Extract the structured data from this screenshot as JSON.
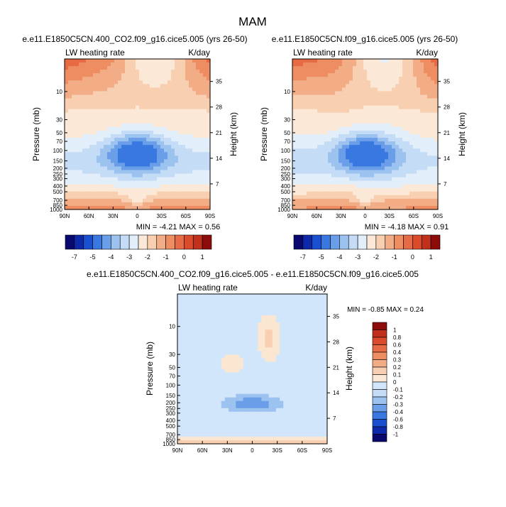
{
  "page_title": "MAM",
  "chart_data": [
    {
      "type": "heatmap",
      "title": "e.e11.E1850C5CN.400_CO2.f09_g16.cice5.005 (yrs 26-50)",
      "left_label": "LW heating rate",
      "right_label": "K/day",
      "ylabel": "Pressure (mb)",
      "ylabel_right": "Height (km)",
      "x_ticks": [
        "90N",
        "60N",
        "30N",
        "0",
        "30S",
        "60S",
        "90S"
      ],
      "pressure_ticks": [
        "10",
        "30",
        "50",
        "70",
        "100",
        "150",
        "200",
        "250",
        "300",
        "400",
        "500",
        "700",
        "850",
        "1000"
      ],
      "height_ticks": [
        "35",
        "28",
        "21",
        "14",
        "7"
      ],
      "stats": "MIN = -4.21   MAX =  0.56",
      "min": -4.21,
      "max": 0.56,
      "colorbar_labels": [
        "-7",
        "-5",
        "-4",
        "-3",
        "-2",
        "-1",
        "0",
        "1"
      ],
      "levels": [
        -8,
        -7,
        -6,
        -5,
        -4,
        -3.5,
        -3,
        -2.5,
        -2,
        -1.5,
        -1,
        -0.5,
        0,
        0.5,
        1,
        2
      ]
    },
    {
      "type": "heatmap",
      "title": "e.e11.E1850C5CN.f09_g16.cice5.005 (yrs 26-50)",
      "left_label": "LW heating rate",
      "right_label": "K/day",
      "ylabel": "Pressure (mb)",
      "ylabel_right": "Height (km)",
      "x_ticks": [
        "90N",
        "60N",
        "30N",
        "0",
        "30S",
        "60S",
        "90S"
      ],
      "pressure_ticks": [
        "10",
        "30",
        "50",
        "70",
        "100",
        "150",
        "200",
        "250",
        "300",
        "400",
        "500",
        "700",
        "850",
        "1000"
      ],
      "height_ticks": [
        "35",
        "28",
        "21",
        "14",
        "7"
      ],
      "stats": "MIN = -4.18   MAX =  0.91",
      "min": -4.18,
      "max": 0.91,
      "colorbar_labels": [
        "-7",
        "-5",
        "-4",
        "-3",
        "-2",
        "-1",
        "0",
        "1"
      ],
      "levels": [
        -8,
        -7,
        -6,
        -5,
        -4,
        -3.5,
        -3,
        -2.5,
        -2,
        -1.5,
        -1,
        -0.5,
        0,
        0.5,
        1,
        2
      ]
    },
    {
      "type": "heatmap",
      "title": "e.e11.E1850C5CN.400_CO2.f09_g16.cice5.005 - e.e11.E1850C5CN.f09_g16.cice5.005",
      "left_label": "LW heating rate",
      "right_label": "K/day",
      "ylabel": "Pressure (mb)",
      "ylabel_right": "Height (km)",
      "x_ticks": [
        "90N",
        "60N",
        "30N",
        "0",
        "30S",
        "60S",
        "90S"
      ],
      "pressure_ticks": [
        "10",
        "30",
        "50",
        "70",
        "100",
        "150",
        "200",
        "250",
        "300",
        "400",
        "500",
        "700",
        "850",
        "1000"
      ],
      "height_ticks": [
        "35",
        "28",
        "21",
        "14",
        "7"
      ],
      "stats": "MIN = -0.85   MAX =  0.24",
      "min": -0.85,
      "max": 0.24,
      "colorbar_labels": [
        "1",
        "0.8",
        "0.6",
        "0.4",
        "0.3",
        "0.2",
        "0.1",
        "0",
        "-0.1",
        "-0.2",
        "-0.3",
        "-0.4",
        "-0.6",
        "-0.8",
        "-1"
      ]
    }
  ],
  "colors": {
    "blues": [
      "#08086e",
      "#0d28a8",
      "#1a4fd0",
      "#3878e0",
      "#6a9ee8",
      "#9cc2f0",
      "#c4dcf6",
      "#e2eefa"
    ],
    "reds": [
      "#fbe8d6",
      "#f8cfb0",
      "#f3ad86",
      "#ee8c62",
      "#e66a43",
      "#d94b2a",
      "#c0301a",
      "#8c0c0c"
    ],
    "neutral_neg": "#d2e6fb",
    "neutral_pos": "#fbe6d2"
  }
}
